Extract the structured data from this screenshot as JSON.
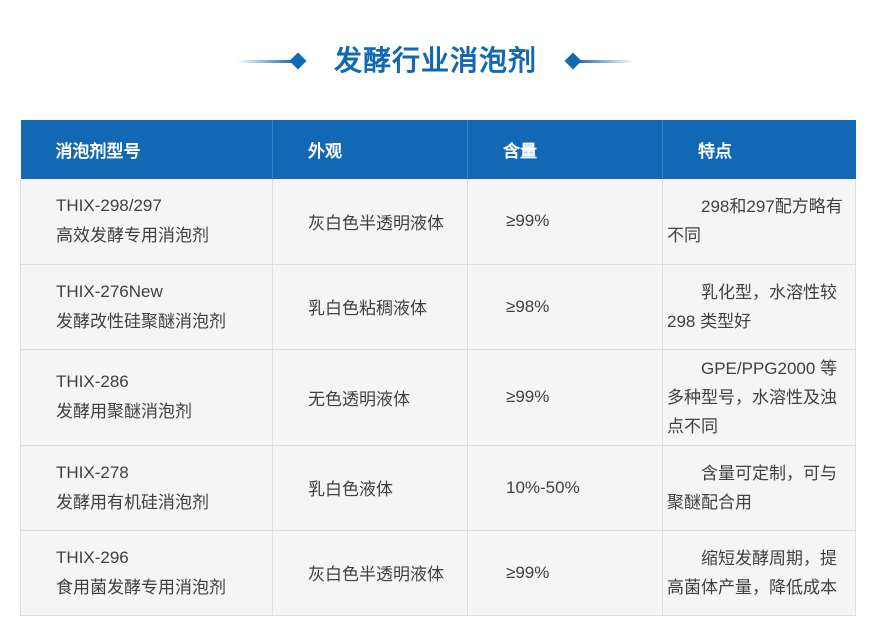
{
  "header": {
    "title": "发酵行业消泡剂"
  },
  "colors": {
    "primary_blue": "#1268b2",
    "header_text": "#ffffff",
    "row_background": "#f5f5f5",
    "divider": "#dddddd",
    "body_text": "#404040"
  },
  "table": {
    "columns": [
      "消泡剂型号",
      "外观",
      "含量",
      "特点"
    ],
    "rows": [
      {
        "model": "THIX-298/297",
        "name": "高效发酵专用消泡剂",
        "appearance": "灰白色半透明液体",
        "content": "≥99%",
        "feature": "298和297配方略有不同"
      },
      {
        "model": "THIX-276New",
        "name": "发酵改性硅聚醚消泡剂",
        "appearance": "乳白色粘稠液体",
        "content": "≥98%",
        "feature": "乳化型，水溶性较 298 类型好"
      },
      {
        "model": "THIX-286",
        "name": "发酵用聚醚消泡剂",
        "appearance": "无色透明液体",
        "content": "≥99%",
        "feature": "GPE/PPG2000 等多种型号，水溶性及浊点不同"
      },
      {
        "model": "THIX-278",
        "name": "发酵用有机硅消泡剂",
        "appearance": "乳白色液体",
        "content": "10%-50%",
        "feature": "含量可定制，可与聚醚配合用"
      },
      {
        "model": "THIX-296",
        "name": "食用菌发酵专用消泡剂",
        "appearance": "灰白色半透明液体",
        "content": "≥99%",
        "feature": "缩短发酵周期，提高菌体产量，降低成本"
      }
    ]
  }
}
